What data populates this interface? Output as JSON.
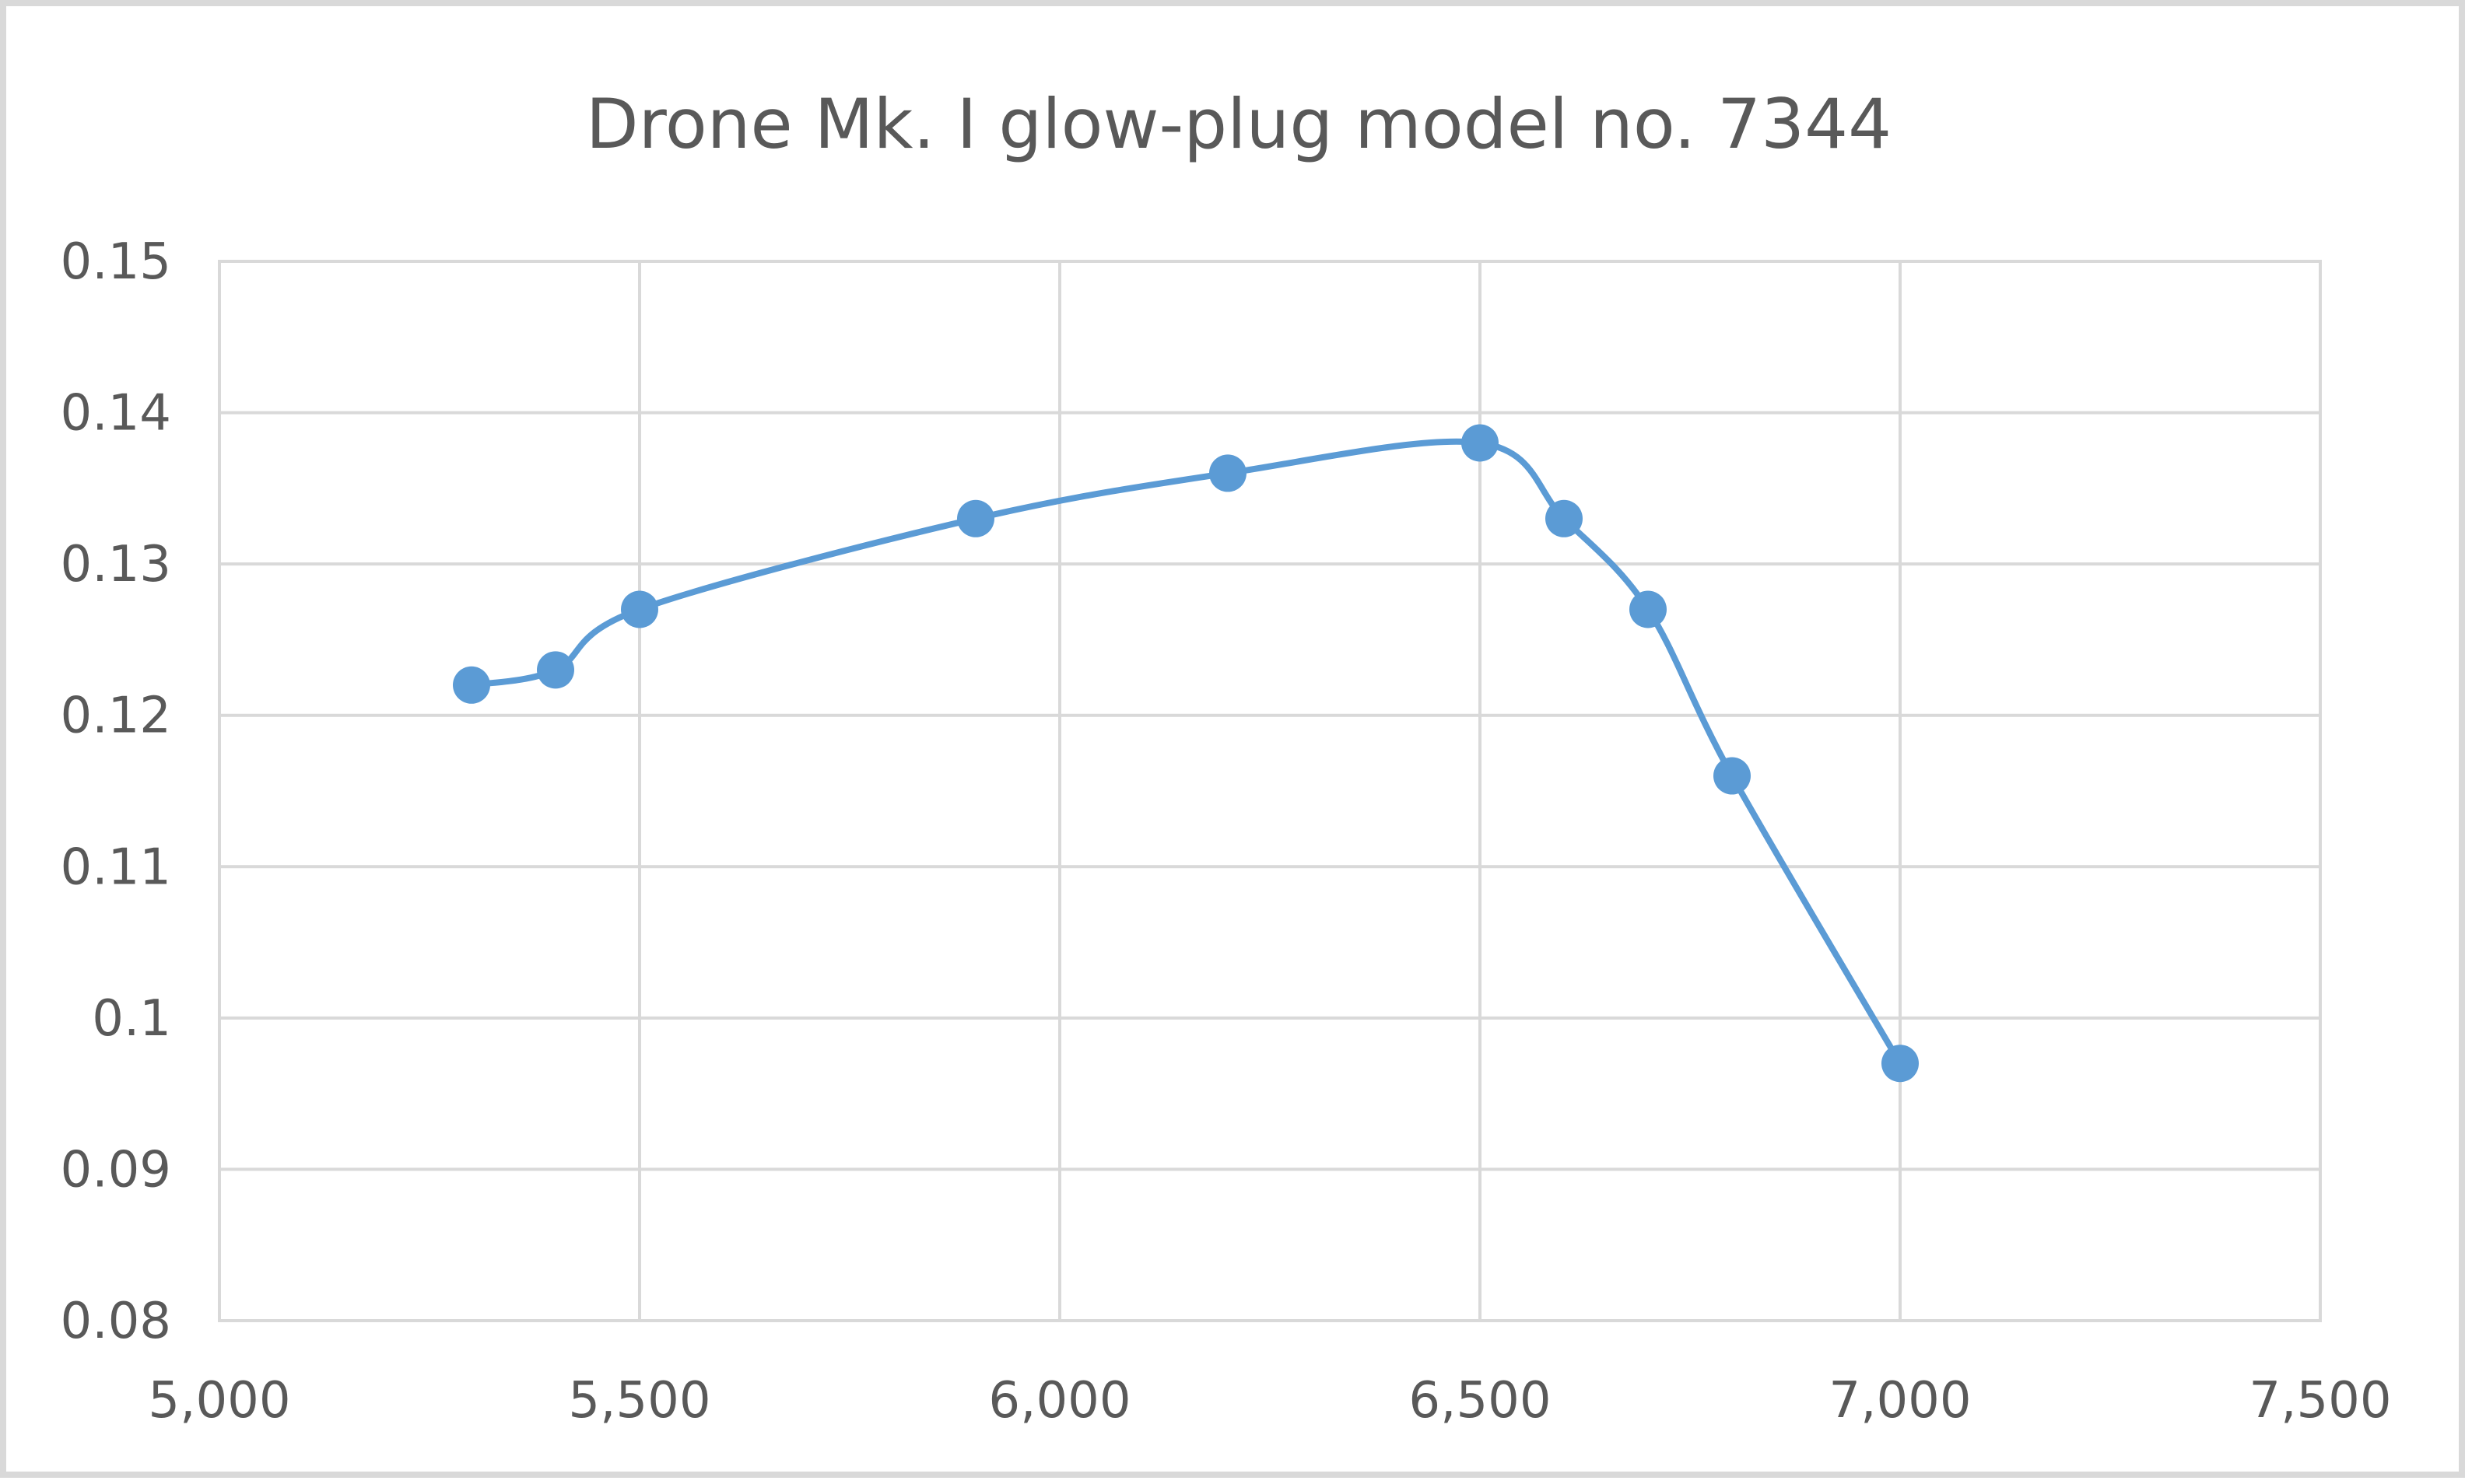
{
  "chart_data": {
    "type": "scatter",
    "title": "Drone Mk. I glow-plug model no. 7344",
    "xlabel": "",
    "ylabel": "",
    "xlim": [
      5000,
      7500
    ],
    "ylim": [
      0.08,
      0.15
    ],
    "x_ticks": [
      5000,
      5500,
      6000,
      6500,
      7000,
      7500
    ],
    "x_tick_labels": [
      "5,000",
      "5,500",
      "6,000",
      "6,500",
      "7,000",
      "7,500"
    ],
    "y_ticks": [
      0.08,
      0.09,
      0.1,
      0.11,
      0.12,
      0.13,
      0.14,
      0.15
    ],
    "y_tick_labels": [
      "0.08",
      "0.09",
      "0.1",
      "0.11",
      "0.12",
      "0.13",
      "0.14",
      "0.15"
    ],
    "grid": true,
    "legend": "none",
    "smooth_line": true,
    "series": [
      {
        "color": "#5b9bd5",
        "x": [
          5300,
          5400,
          5500,
          5900,
          6200,
          6500,
          6600,
          6700,
          6800,
          7000
        ],
        "y": [
          0.122,
          0.123,
          0.127,
          0.133,
          0.136,
          0.138,
          0.133,
          0.127,
          0.116,
          0.097
        ]
      }
    ]
  }
}
